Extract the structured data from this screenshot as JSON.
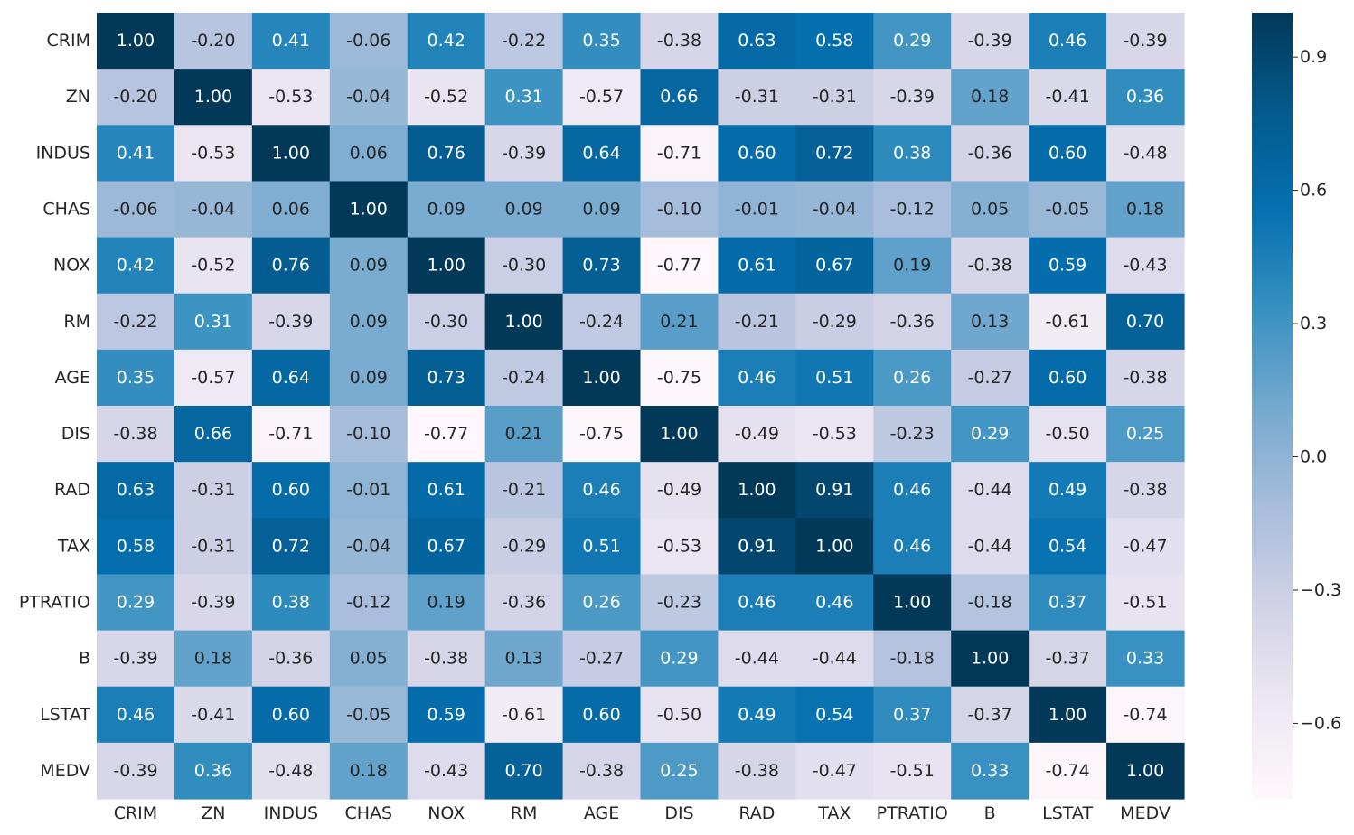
{
  "chart_data": {
    "type": "heatmap",
    "title": "",
    "xlabel": "",
    "ylabel": "",
    "labels": [
      "CRIM",
      "ZN",
      "INDUS",
      "CHAS",
      "NOX",
      "RM",
      "AGE",
      "DIS",
      "RAD",
      "TAX",
      "PTRATIO",
      "B",
      "LSTAT",
      "MEDV"
    ],
    "matrix": [
      [
        "1.00",
        "-0.20",
        "0.41",
        "-0.06",
        "0.42",
        "-0.22",
        "0.35",
        "-0.38",
        "0.63",
        "0.58",
        "0.29",
        "-0.39",
        "0.46",
        "-0.39"
      ],
      [
        "-0.20",
        "1.00",
        "-0.53",
        "-0.04",
        "-0.52",
        "0.31",
        "-0.57",
        "0.66",
        "-0.31",
        "-0.31",
        "-0.39",
        "0.18",
        "-0.41",
        "0.36"
      ],
      [
        "0.41",
        "-0.53",
        "1.00",
        "0.06",
        "0.76",
        "-0.39",
        "0.64",
        "-0.71",
        "0.60",
        "0.72",
        "0.38",
        "-0.36",
        "0.60",
        "-0.48"
      ],
      [
        "-0.06",
        "-0.04",
        "0.06",
        "1.00",
        "0.09",
        "0.09",
        "0.09",
        "-0.10",
        "-0.01",
        "-0.04",
        "-0.12",
        "0.05",
        "-0.05",
        "0.18"
      ],
      [
        "0.42",
        "-0.52",
        "0.76",
        "0.09",
        "1.00",
        "-0.30",
        "0.73",
        "-0.77",
        "0.61",
        "0.67",
        "0.19",
        "-0.38",
        "0.59",
        "-0.43"
      ],
      [
        "-0.22",
        "0.31",
        "-0.39",
        "0.09",
        "-0.30",
        "1.00",
        "-0.24",
        "0.21",
        "-0.21",
        "-0.29",
        "-0.36",
        "0.13",
        "-0.61",
        "0.70"
      ],
      [
        "0.35",
        "-0.57",
        "0.64",
        "0.09",
        "0.73",
        "-0.24",
        "1.00",
        "-0.75",
        "0.46",
        "0.51",
        "0.26",
        "-0.27",
        "0.60",
        "-0.38"
      ],
      [
        "-0.38",
        "0.66",
        "-0.71",
        "-0.10",
        "-0.77",
        "0.21",
        "-0.75",
        "1.00",
        "-0.49",
        "-0.53",
        "-0.23",
        "0.29",
        "-0.50",
        "0.25"
      ],
      [
        "0.63",
        "-0.31",
        "0.60",
        "-0.01",
        "0.61",
        "-0.21",
        "0.46",
        "-0.49",
        "1.00",
        "0.91",
        "0.46",
        "-0.44",
        "0.49",
        "-0.38"
      ],
      [
        "0.58",
        "-0.31",
        "0.72",
        "-0.04",
        "0.67",
        "-0.29",
        "0.51",
        "-0.53",
        "0.91",
        "1.00",
        "0.46",
        "-0.44",
        "0.54",
        "-0.47"
      ],
      [
        "0.29",
        "-0.39",
        "0.38",
        "-0.12",
        "0.19",
        "-0.36",
        "0.26",
        "-0.23",
        "0.46",
        "0.46",
        "1.00",
        "-0.18",
        "0.37",
        "-0.51"
      ],
      [
        "-0.39",
        "0.18",
        "-0.36",
        "0.05",
        "-0.38",
        "0.13",
        "-0.27",
        "0.29",
        "-0.44",
        "-0.44",
        "-0.18",
        "1.00",
        "-0.37",
        "0.33"
      ],
      [
        "0.46",
        "-0.41",
        "0.60",
        "-0.05",
        "0.59",
        "-0.61",
        "0.60",
        "-0.50",
        "0.49",
        "0.54",
        "0.37",
        "-0.37",
        "1.00",
        "-0.74"
      ],
      [
        "-0.39",
        "0.36",
        "-0.48",
        "0.18",
        "-0.43",
        "0.70",
        "-0.38",
        "0.25",
        "-0.38",
        "-0.47",
        "-0.51",
        "0.33",
        "-0.74",
        "1.00"
      ]
    ],
    "colorbar": {
      "range": [
        -0.77,
        1.0
      ],
      "ticks": [
        "0.9",
        "0.6",
        "0.3",
        "0.0",
        "−0.3",
        "−0.6"
      ],
      "tick_values": [
        0.9,
        0.6,
        0.3,
        0.0,
        -0.3,
        -0.6
      ],
      "colormap": "PuBu",
      "colors": [
        "#fff7fb",
        "#ece7f2",
        "#d0d1e6",
        "#a6bddb",
        "#74a9cf",
        "#3690c0",
        "#0570b0",
        "#045a8d",
        "#023858"
      ]
    },
    "annotations": true,
    "legend": "colorbar-right",
    "grid": false
  }
}
